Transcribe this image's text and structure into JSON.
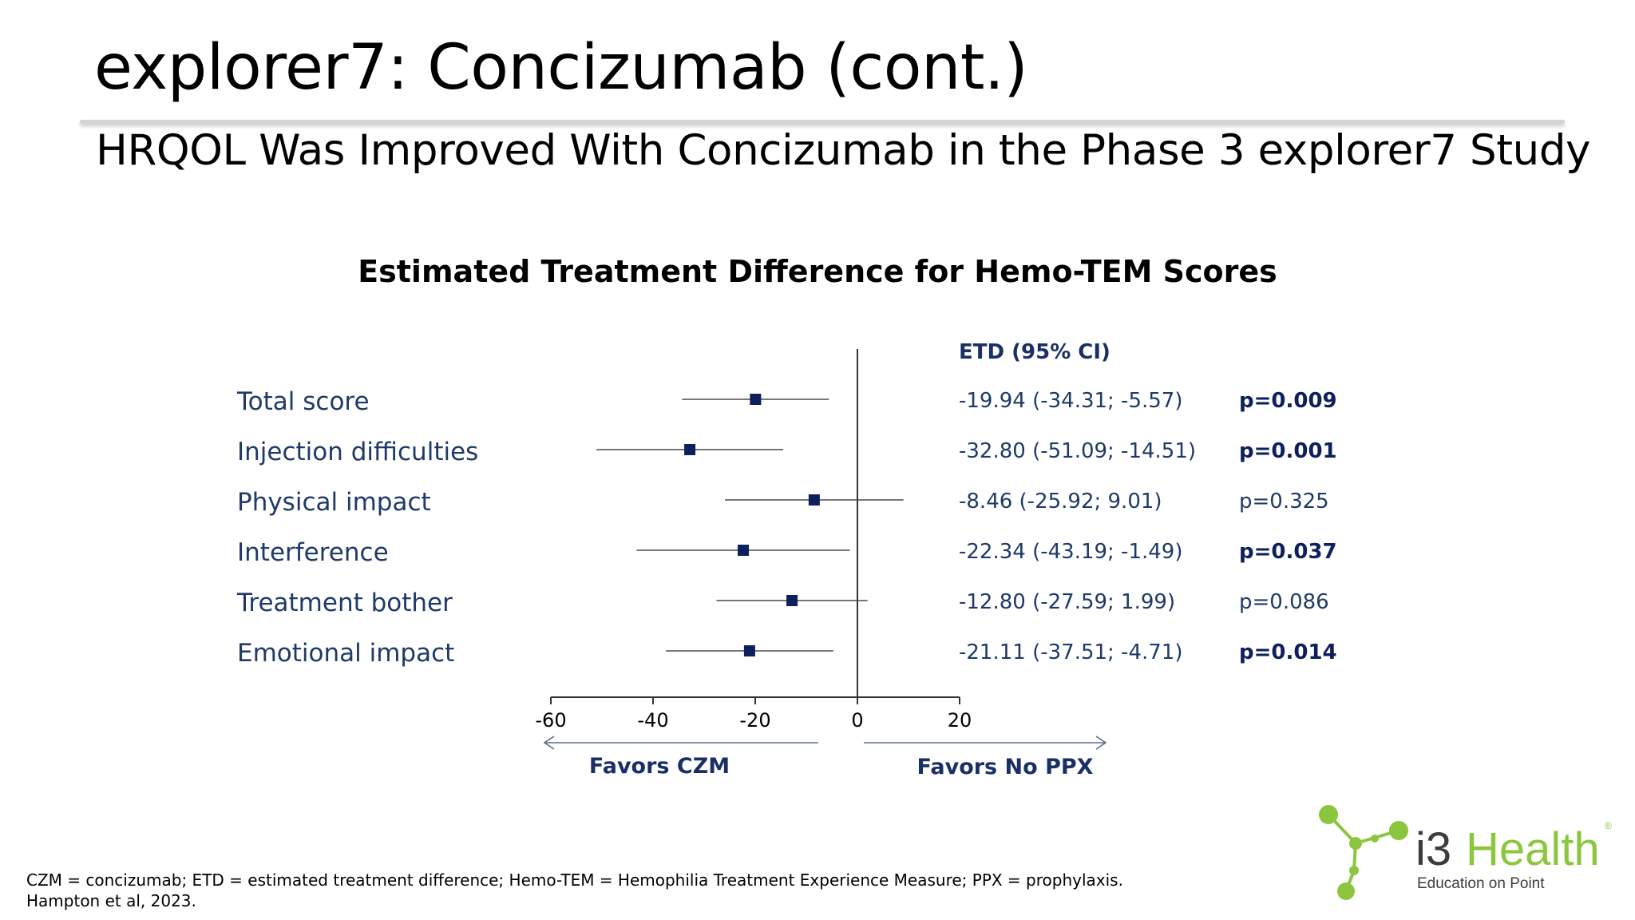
{
  "slide": {
    "title": "explorer7: Concizumab (cont.)",
    "subtitle": "HRQOL Was Improved With Concizumab in the Phase 3 explorer7 Study"
  },
  "chart_data": {
    "type": "forest",
    "title": "Estimated Treatment Difference for Hemo-TEM Scores",
    "etd_header": "ETD (95% CI)",
    "xlim": [
      -60,
      20
    ],
    "x_ticks": [
      -60,
      -40,
      -20,
      0,
      20
    ],
    "x_tick_labels": [
      "-60",
      "-40",
      "-20",
      "0",
      "20"
    ],
    "left_arrow_label": "Favors CZM",
    "right_arrow_label": "Favors No PPX",
    "series_color": "#0d1f5c",
    "label_color": "#1f3a68",
    "rows": [
      {
        "label": "Total score",
        "etd": -19.94,
        "lo": -34.31,
        "hi": -5.57,
        "ci_text": "-19.94 (-34.31; -5.57)",
        "p_text": "p=0.009",
        "significant": true
      },
      {
        "label": "Injection difficulties",
        "etd": -32.8,
        "lo": -51.09,
        "hi": -14.51,
        "ci_text": "-32.80 (-51.09; -14.51)",
        "p_text": "p=0.001",
        "significant": true
      },
      {
        "label": "Physical impact",
        "etd": -8.46,
        "lo": -25.92,
        "hi": 9.01,
        "ci_text": "-8.46 (-25.92; 9.01)",
        "p_text": "p=0.325",
        "significant": false
      },
      {
        "label": "Interference",
        "etd": -22.34,
        "lo": -43.19,
        "hi": -1.49,
        "ci_text": "-22.34 (-43.19; -1.49)",
        "p_text": "p=0.037",
        "significant": true
      },
      {
        "label": "Treatment bother",
        "etd": -12.8,
        "lo": -27.59,
        "hi": 1.99,
        "ci_text": "-12.80 (-27.59; 1.99)",
        "p_text": "p=0.086",
        "significant": false
      },
      {
        "label": "Emotional impact",
        "etd": -21.11,
        "lo": -37.51,
        "hi": -4.71,
        "ci_text": "-21.11 (-37.51; -4.71)",
        "p_text": "p=0.014",
        "significant": true
      }
    ]
  },
  "footnote": {
    "line1": "CZM = concizumab; ETD = estimated treatment difference; Hemo-TEM = Hemophilia Treatment Experience Measure; PPX = prophylaxis.",
    "line2": "Hampton et al, 2023."
  },
  "logo": {
    "text_i3": "i3",
    "text_health": "Health",
    "registered": "®",
    "tagline": "Education on Point",
    "colors": {
      "green": "#8cc63f",
      "gray": "#3c3c3c"
    }
  }
}
